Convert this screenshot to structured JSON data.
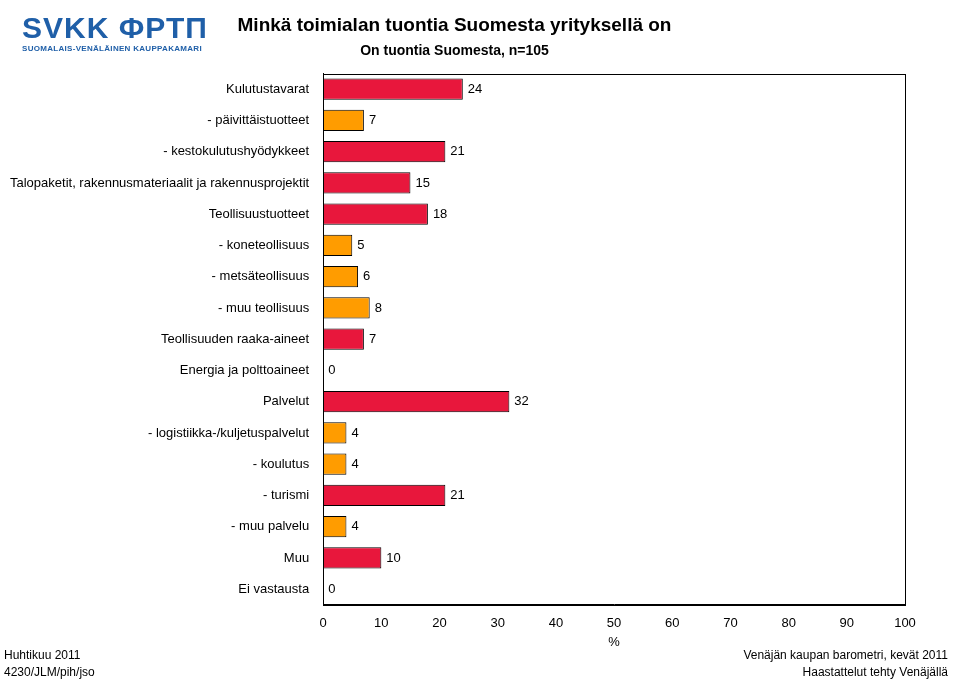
{
  "header": {
    "logo": "SVKK ФРТП",
    "logo_subtitle": "SUOMALAIS-VENÄLÄINEN KAUPPAKAMARI"
  },
  "chart_data": {
    "type": "bar",
    "orientation": "horizontal",
    "title": "Minkä toimialan tuontia Suomesta yrityksellä on",
    "subtitle": "On tuontia Suomesta, n=105",
    "x_label": "%",
    "categories": [
      "Kulutustavarat",
      "- päivittäistuotteet",
      "- kestokulutushyödykkeet",
      "Talopaketit, rakennusmateriaalit ja rakennusprojektit",
      "Teollisuustuotteet",
      "- koneteollisuus",
      "- metsäteollisuus",
      "- muu teollisuus",
      "Teollisuuden raaka-aineet",
      "Energia ja polttoaineet",
      "Palvelut",
      "- logistiikka-/kuljetuspalvelut",
      "- koulutus",
      "- turismi",
      "- muu palvelu",
      "Muu",
      "Ei vastausta"
    ],
    "values": [
      24,
      7,
      21,
      15,
      18,
      5,
      6,
      8,
      7,
      0,
      32,
      4,
      4,
      21,
      4,
      10,
      0
    ],
    "colors": [
      "#e8173c",
      "#ff9c00",
      "#e8173c",
      "#e8173c",
      "#e8173c",
      "#ff9c00",
      "#ff9c00",
      "#ff9c00",
      "#e8173c",
      "#e8173c",
      "#e8173c",
      "#ff9c00",
      "#ff9c00",
      "#e8173c",
      "#ff9c00",
      "#e8173c",
      "#e8173c"
    ],
    "xlim": [
      0,
      100
    ],
    "xticks": [
      0,
      10,
      20,
      30,
      40,
      50,
      60,
      70,
      80,
      90,
      100
    ],
    "grid": false,
    "data_labels": true
  },
  "footer": {
    "date": "Huhtikuu 2011",
    "code": "4230/JLM/pih/jso",
    "source": "Venäjän kaupan barometri, kevät 2011",
    "note": "Haastattelut tehty Venäjällä"
  }
}
